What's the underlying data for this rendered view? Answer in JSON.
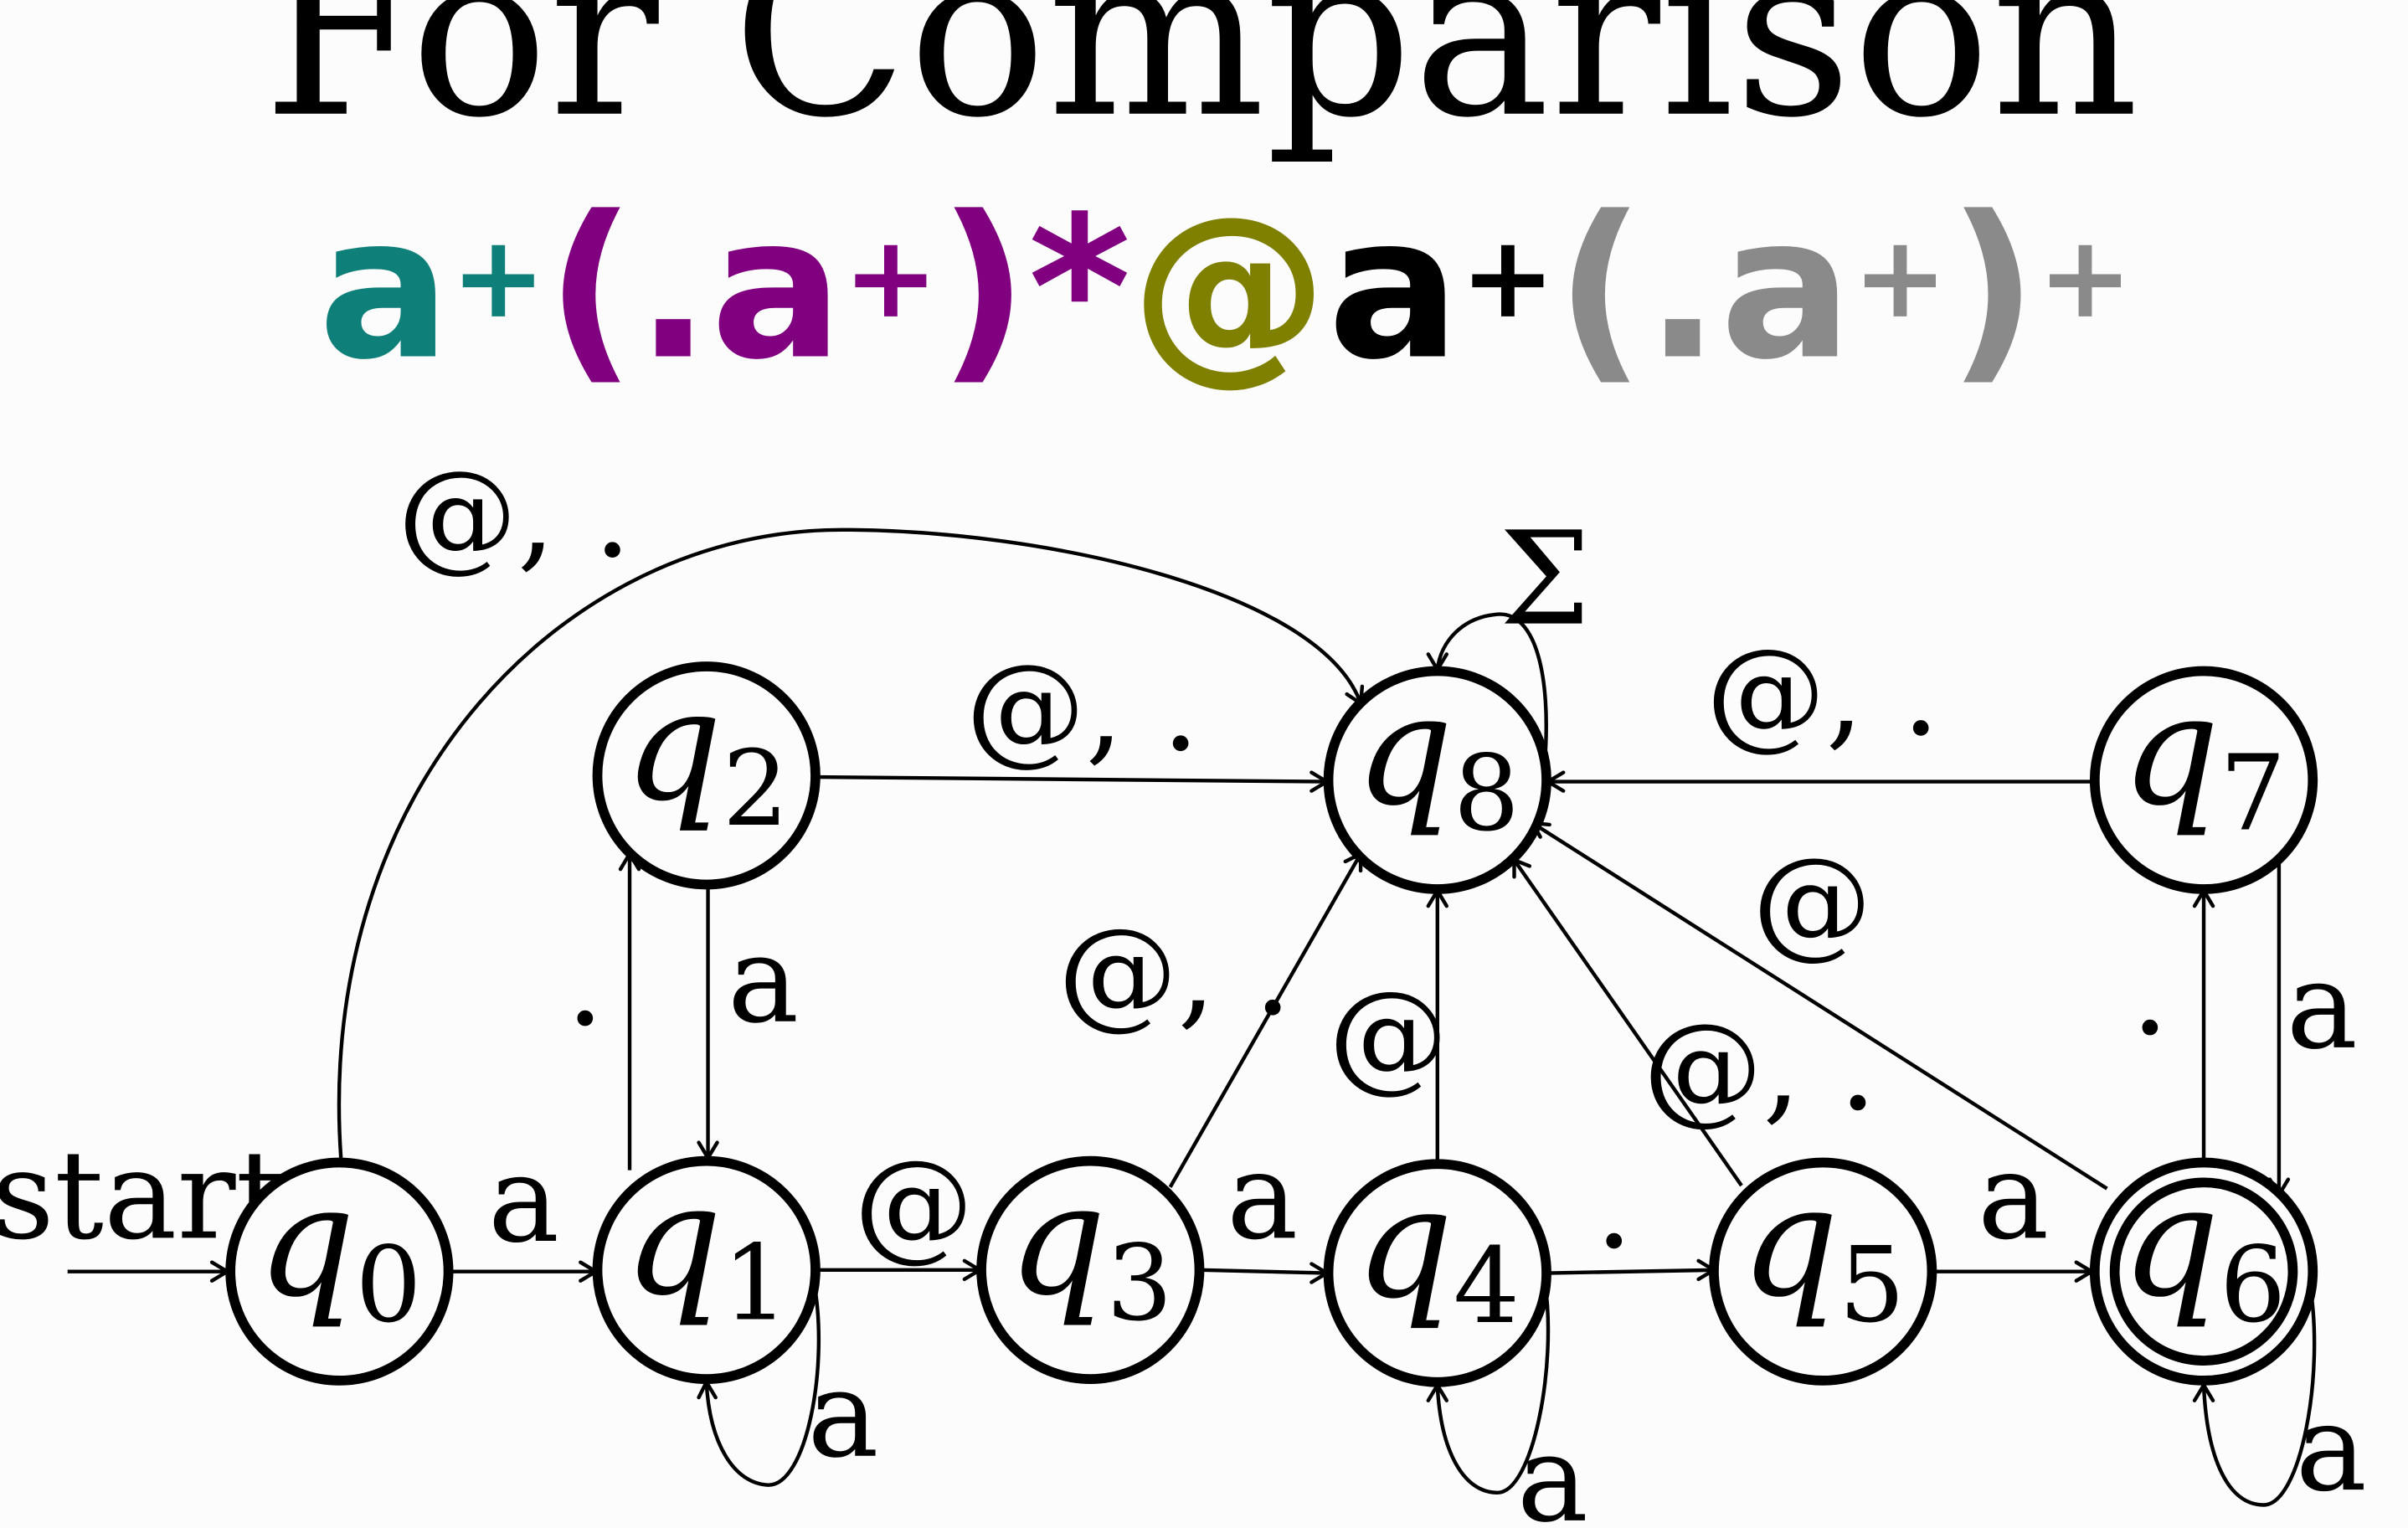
{
  "title": "For Comparison",
  "regex": {
    "groups": [
      {
        "id": "local-first",
        "color": "#0f7f7a",
        "parts": [
          {
            "t": "a"
          },
          {
            "sup": "+"
          }
        ]
      },
      {
        "id": "local-repeat",
        "color": "#800080",
        "parts": [
          {
            "t": "(.a"
          },
          {
            "sup": "+"
          },
          {
            "t": ")*"
          }
        ]
      },
      {
        "id": "at-sign",
        "color": "#7f7f00",
        "parts": [
          {
            "t": "@"
          }
        ]
      },
      {
        "id": "domain-first",
        "color": "#000000",
        "parts": [
          {
            "t": "a"
          },
          {
            "sup": "+"
          }
        ]
      },
      {
        "id": "domain-repeat",
        "color": "#8a8a8a",
        "parts": [
          {
            "t": "(.a"
          },
          {
            "sup": "+"
          },
          {
            "t": ")"
          },
          {
            "sup": "+"
          }
        ]
      }
    ]
  },
  "automaton": {
    "start_label": "start",
    "states": [
      {
        "id": "q0",
        "letter": "q",
        "sub": "0",
        "accepting": false
      },
      {
        "id": "q1",
        "letter": "q",
        "sub": "1",
        "accepting": false
      },
      {
        "id": "q2",
        "letter": "q",
        "sub": "2",
        "accepting": false
      },
      {
        "id": "q3",
        "letter": "q",
        "sub": "3",
        "accepting": false
      },
      {
        "id": "q4",
        "letter": "q",
        "sub": "4",
        "accepting": false
      },
      {
        "id": "q5",
        "letter": "q",
        "sub": "5",
        "accepting": false
      },
      {
        "id": "q6",
        "letter": "q",
        "sub": "6",
        "accepting": true
      },
      {
        "id": "q7",
        "letter": "q",
        "sub": "7",
        "accepting": false
      },
      {
        "id": "q8",
        "letter": "q",
        "sub": "8",
        "accepting": false
      }
    ],
    "transitions": [
      {
        "id": "q0-q1",
        "from": "q0",
        "to": "q1",
        "label": "a"
      },
      {
        "id": "q0-q8",
        "from": "q0",
        "to": "q8",
        "label": "@, ."
      },
      {
        "id": "q1-q1",
        "from": "q1",
        "to": "q1",
        "label": "a"
      },
      {
        "id": "q1-q2",
        "from": "q1",
        "to": "q2",
        "label": "."
      },
      {
        "id": "q2-q1",
        "from": "q2",
        "to": "q1",
        "label": "a"
      },
      {
        "id": "q1-q3",
        "from": "q1",
        "to": "q3",
        "label": "@"
      },
      {
        "id": "q2-q8",
        "from": "q2",
        "to": "q8",
        "label": "@, ."
      },
      {
        "id": "q3-q4",
        "from": "q3",
        "to": "q4",
        "label": "a"
      },
      {
        "id": "q3-q8",
        "from": "q3",
        "to": "q8",
        "label": "@, ."
      },
      {
        "id": "q4-q4",
        "from": "q4",
        "to": "q4",
        "label": "a"
      },
      {
        "id": "q4-q5",
        "from": "q4",
        "to": "q5",
        "label": "."
      },
      {
        "id": "q4-q8",
        "from": "q4",
        "to": "q8",
        "label": "@"
      },
      {
        "id": "q5-q6",
        "from": "q5",
        "to": "q6",
        "label": "a"
      },
      {
        "id": "q5-q8",
        "from": "q5",
        "to": "q8",
        "label": "@, ."
      },
      {
        "id": "q6-q6",
        "from": "q6",
        "to": "q6",
        "label": "a"
      },
      {
        "id": "q6-q7",
        "from": "q6",
        "to": "q7",
        "label": "."
      },
      {
        "id": "q7-q6",
        "from": "q7",
        "to": "q6",
        "label": "a"
      },
      {
        "id": "q6-q8",
        "from": "q6",
        "to": "q8",
        "label": "@"
      },
      {
        "id": "q7-q8",
        "from": "q7",
        "to": "q8",
        "label": "@, ."
      },
      {
        "id": "q8-q8",
        "from": "q8",
        "to": "q8",
        "label": "Σ"
      }
    ]
  }
}
